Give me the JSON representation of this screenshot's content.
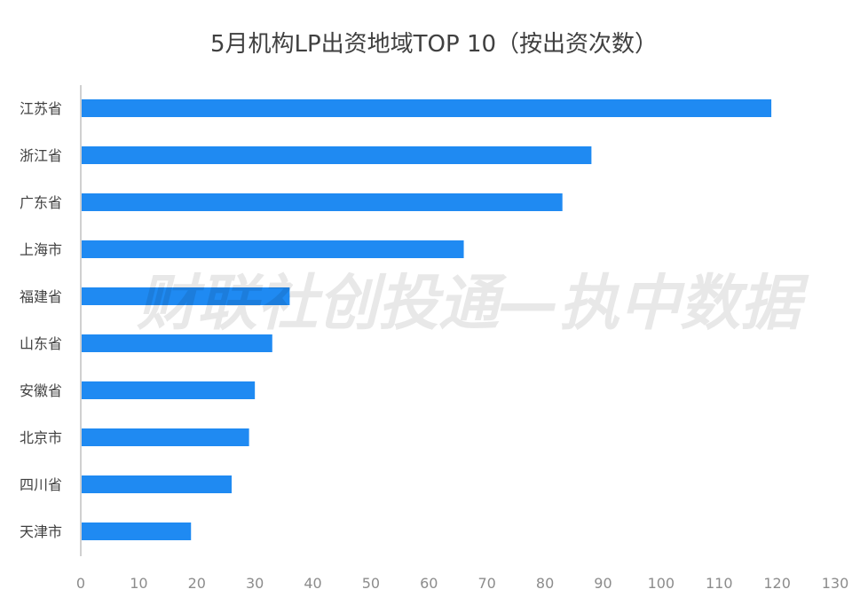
{
  "chart_data": {
    "type": "bar",
    "orientation": "horizontal",
    "title": "5月机构LP出资地域TOP 10（按出资次数）",
    "categories": [
      "江苏省",
      "浙江省",
      "广东省",
      "上海市",
      "福建省",
      "山东省",
      "安徽省",
      "北京市",
      "四川省",
      "天津市"
    ],
    "values": [
      119,
      88,
      83,
      66,
      36,
      33,
      30,
      29,
      26,
      19
    ],
    "xlim": [
      0,
      130
    ],
    "xticks": [
      0,
      10,
      20,
      30,
      40,
      50,
      60,
      70,
      80,
      90,
      100,
      110,
      120,
      130
    ],
    "xlabel": "",
    "ylabel": "",
    "grid": false,
    "bar_color": "#1f8af2",
    "axis_color": "#d0d0d0",
    "watermark": "财联社创投通—执中数据"
  }
}
